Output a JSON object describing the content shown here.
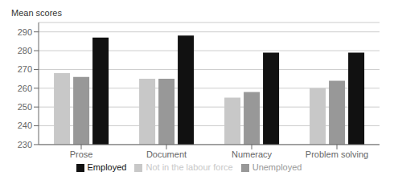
{
  "chart_data": {
    "type": "bar",
    "ylabel": "Mean scores",
    "categories": [
      "Prose",
      "Document",
      "Numeracy",
      "Problem solving"
    ],
    "series": [
      {
        "name": "Not in the labour force",
        "color": "#c8c8c8",
        "values": [
          268,
          265,
          255,
          260
        ]
      },
      {
        "name": "Unemployed",
        "color": "#989898",
        "values": [
          266,
          265,
          258,
          264
        ]
      },
      {
        "name": "Employed",
        "color": "#111111",
        "values": [
          287,
          288,
          279,
          279
        ]
      }
    ],
    "ylim": [
      230,
      295
    ],
    "yticks": [
      230,
      240,
      250,
      260,
      270,
      280,
      290
    ],
    "grid": true,
    "legend": "bottom"
  }
}
